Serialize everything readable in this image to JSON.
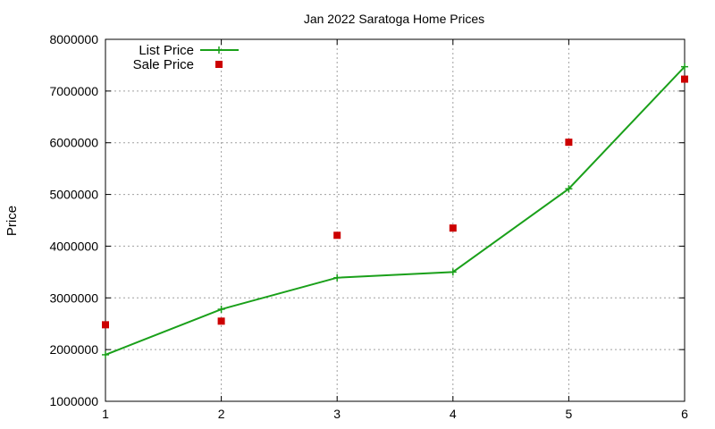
{
  "chart_data": {
    "type": "line",
    "title": "Jan 2022 Saratoga Home Prices",
    "xlabel": "",
    "ylabel": "Price",
    "x": [
      1,
      2,
      3,
      4,
      5,
      6
    ],
    "xlim": [
      1,
      6
    ],
    "ylim": [
      1000000,
      8000000
    ],
    "xticks": [
      "1",
      "2",
      "3",
      "4",
      "5",
      "6"
    ],
    "yticks": [
      "1000000",
      "2000000",
      "3000000",
      "4000000",
      "5000000",
      "6000000",
      "7000000",
      "8000000"
    ],
    "grid": true,
    "legend_position": "top-left",
    "series": [
      {
        "name": "List Price",
        "style": "line-with-plus-markers",
        "color": "#1aa01a",
        "values": [
          1900000,
          2780000,
          3390000,
          3500000,
          5110000,
          7470000
        ]
      },
      {
        "name": "Sale Price",
        "style": "square-points",
        "color": "#cc0000",
        "values": [
          2480000,
          2550000,
          4210000,
          4350000,
          6010000,
          7230000
        ]
      }
    ]
  }
}
